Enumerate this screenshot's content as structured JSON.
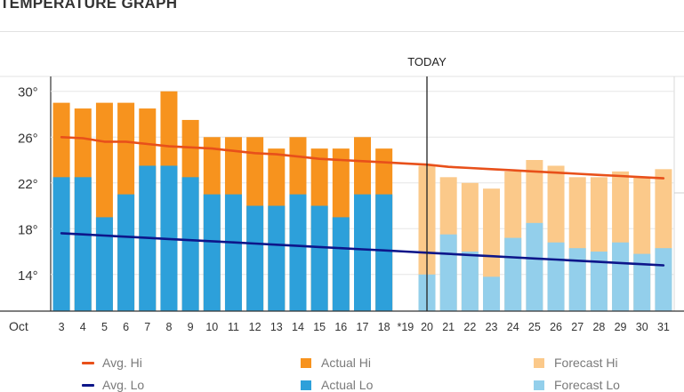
{
  "title": "TEMPERATURE GRAPH",
  "today_label": "TODAY",
  "colors": {
    "actual_hi": "#f7931e",
    "actual_lo": "#2da0da",
    "forecast_hi": "#fbc98a",
    "forecast_lo": "#93cfeb",
    "avg_hi": "#e8501a",
    "avg_lo": "#0d168a"
  },
  "legend": {
    "avg_hi": "Avg. Hi",
    "actual_hi": "Actual Hi",
    "forecast_hi": "Forecast Hi",
    "avg_lo": "Avg. Lo",
    "actual_lo": "Actual Lo",
    "forecast_lo": "Forecast Lo"
  },
  "chart_data": {
    "type": "bar",
    "month_label": "Oct",
    "categories": [
      "3",
      "4",
      "5",
      "6",
      "7",
      "8",
      "9",
      "10",
      "11",
      "12",
      "13",
      "14",
      "15",
      "16",
      "17",
      "18",
      "*19",
      "20",
      "21",
      "22",
      "23",
      "24",
      "25",
      "26",
      "27",
      "28",
      "29",
      "30",
      "31"
    ],
    "today": "20",
    "y_ticks": [
      "30°",
      "26°",
      "22°",
      "18°",
      "14°"
    ],
    "ylim": [
      10.8,
      31.3
    ],
    "grid": true,
    "legend_position": "bottom",
    "series": [
      {
        "name": "Actual Hi",
        "kind": "bar-hi",
        "values": [
          29,
          28.5,
          29,
          29,
          28.5,
          30,
          27.5,
          26,
          26,
          26,
          25,
          26,
          25,
          25,
          26,
          25,
          null,
          null,
          null,
          null,
          null,
          null,
          null,
          null,
          null,
          null,
          null,
          null,
          null
        ]
      },
      {
        "name": "Actual Lo",
        "kind": "bar-lo",
        "values": [
          22.5,
          22.5,
          19,
          21,
          23.5,
          23.5,
          22.5,
          21,
          21,
          20,
          20,
          21,
          20,
          19,
          21,
          21,
          null,
          null,
          null,
          null,
          null,
          null,
          null,
          null,
          null,
          null,
          null,
          null,
          null
        ]
      },
      {
        "name": "Forecast Hi",
        "kind": "bar-hi",
        "values": [
          null,
          null,
          null,
          null,
          null,
          null,
          null,
          null,
          null,
          null,
          null,
          null,
          null,
          null,
          null,
          null,
          null,
          23.5,
          22.5,
          22,
          21.5,
          23,
          24,
          23.5,
          22.5,
          22.5,
          23,
          22.5,
          23.2
        ]
      },
      {
        "name": "Forecast Lo",
        "kind": "bar-lo",
        "values": [
          null,
          null,
          null,
          null,
          null,
          null,
          null,
          null,
          null,
          null,
          null,
          null,
          null,
          null,
          null,
          null,
          null,
          14,
          17.5,
          16,
          13.8,
          17.2,
          18.5,
          16.8,
          16.3,
          16,
          16.8,
          15.8,
          16.3
        ]
      },
      {
        "name": "Avg. Hi",
        "kind": "line",
        "values": [
          26,
          25.9,
          25.6,
          25.6,
          25.4,
          25.2,
          25.1,
          25,
          24.8,
          24.6,
          24.5,
          24.3,
          24.1,
          24,
          23.9,
          23.8,
          23.7,
          23.6,
          23.4,
          23.3,
          23.2,
          23.1,
          23,
          22.9,
          22.8,
          22.7,
          22.6,
          22.5,
          22.4
        ]
      },
      {
        "name": "Avg. Lo",
        "kind": "line",
        "values": [
          17.6,
          17.5,
          17.4,
          17.3,
          17.2,
          17.1,
          17,
          16.9,
          16.8,
          16.7,
          16.6,
          16.5,
          16.4,
          16.3,
          16.2,
          16.1,
          16,
          15.9,
          15.8,
          15.7,
          15.6,
          15.5,
          15.4,
          15.3,
          15.2,
          15.1,
          15,
          14.9,
          14.8
        ]
      }
    ]
  }
}
